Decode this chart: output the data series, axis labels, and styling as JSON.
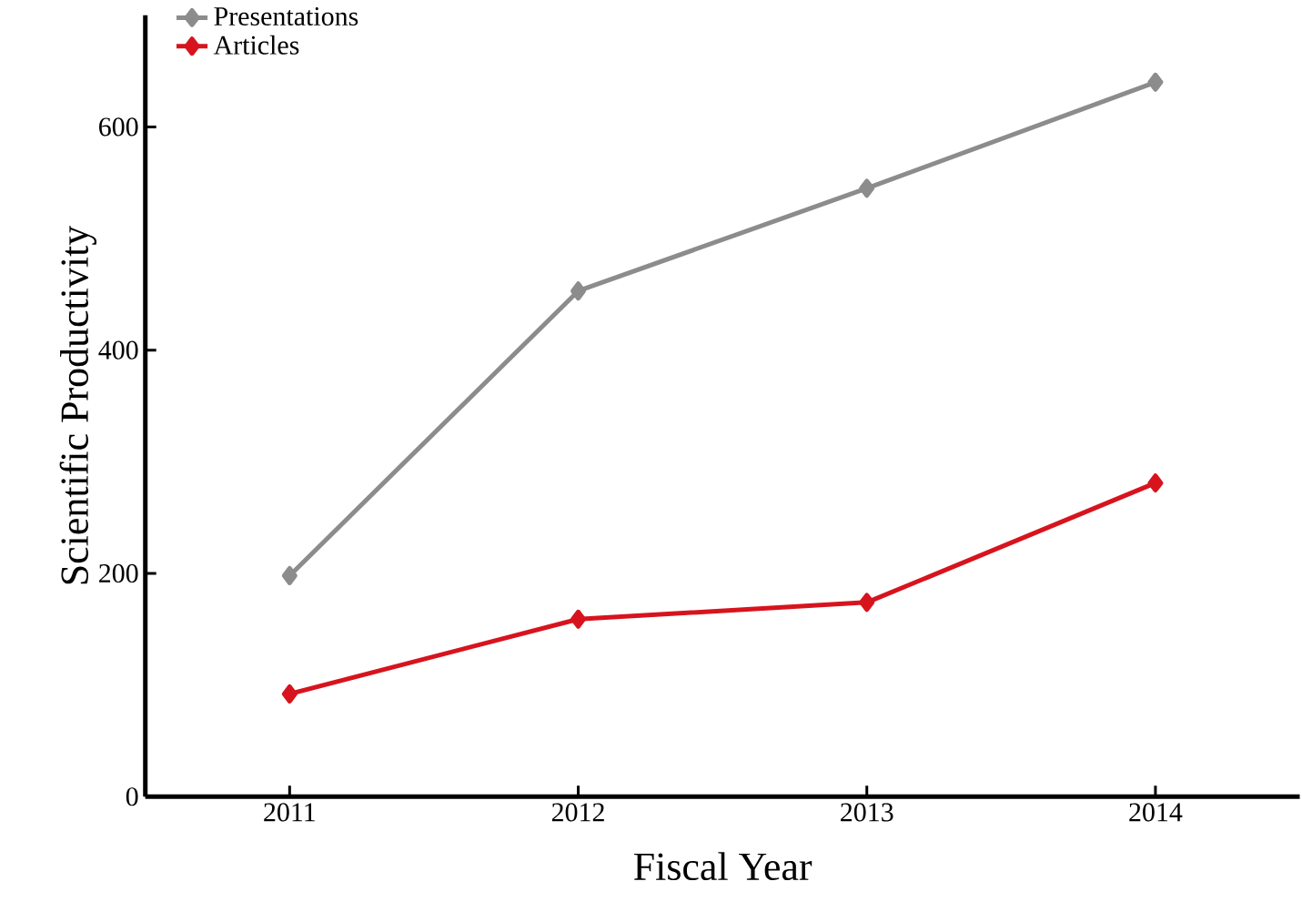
{
  "chart_data": {
    "type": "line",
    "xlabel": "Fiscal Year",
    "ylabel": "Scientific Productivity",
    "x": [
      2011,
      2012,
      2013,
      2014
    ],
    "xlim": [
      2010.5,
      2014.5
    ],
    "xticks": [
      2011,
      2012,
      2013,
      2014
    ],
    "ylim": [
      0,
      700
    ],
    "yticks": [
      0,
      200,
      400,
      600
    ],
    "grid": false,
    "legend": "top left",
    "marker": "diamond",
    "line_style": "solid",
    "series": [
      {
        "name": "Presentations",
        "color": "#8c8c8c",
        "values": [
          198,
          453,
          545,
          640
        ]
      },
      {
        "name": "Articles",
        "color": "#d7141e",
        "values": [
          92,
          159,
          174,
          281
        ]
      }
    ]
  }
}
